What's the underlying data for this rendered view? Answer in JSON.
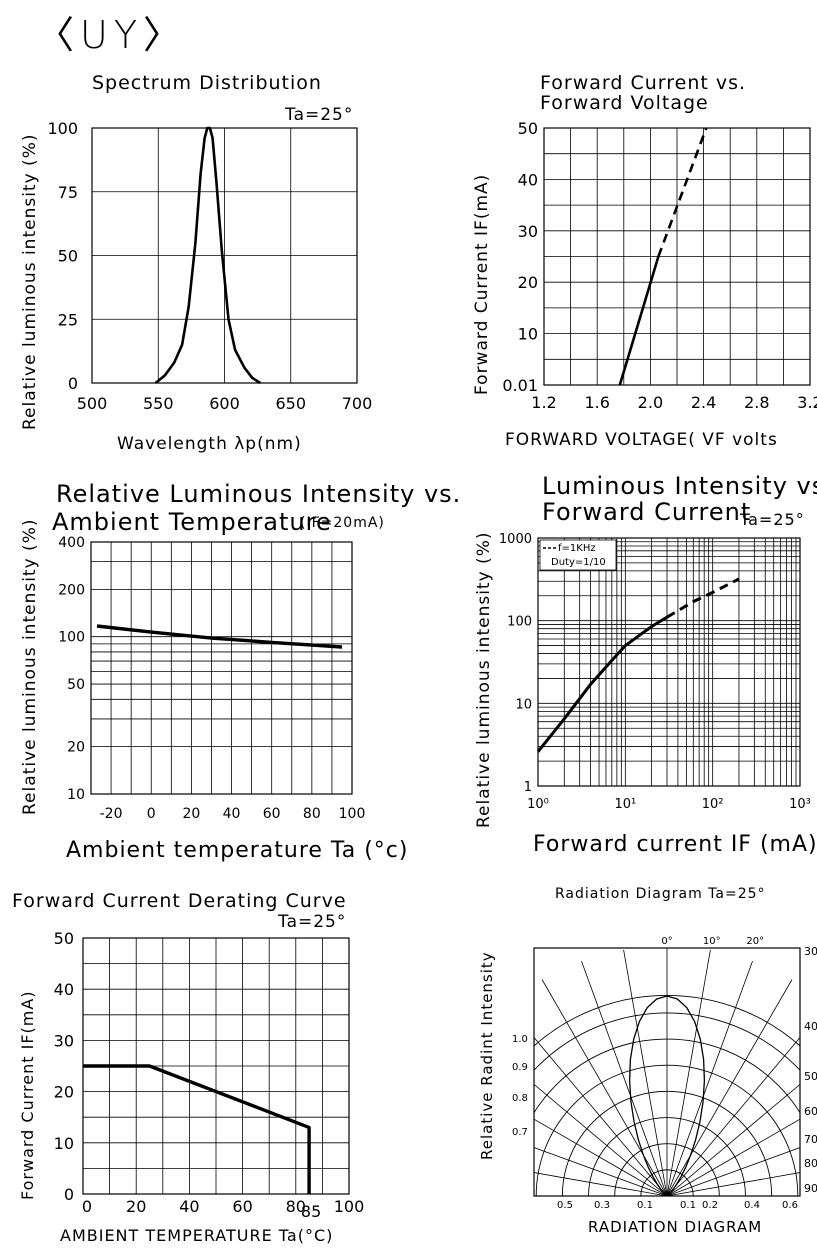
{
  "header": {
    "part_code": "〈UY〉"
  },
  "chart_data": [
    {
      "id": "spectrum",
      "type": "line",
      "title": "Spectrum Distribution",
      "condition": "Ta=25°",
      "xlabel": "Wavelength λp(nm)",
      "ylabel": "Relative luminous intensity (%)",
      "xlim": [
        500,
        700
      ],
      "ylim": [
        0,
        100
      ],
      "x_ticks": [
        "500",
        "550",
        "600",
        "650",
        "700"
      ],
      "y_ticks": [
        "0",
        "25",
        "50",
        "75",
        "100"
      ],
      "grid": true,
      "series": [
        {
          "x": [
            548,
            555,
            562,
            568,
            573,
            578,
            582,
            585,
            587,
            589,
            591,
            594,
            598,
            603,
            608,
            615,
            621,
            627
          ],
          "y": [
            0,
            3,
            8,
            15,
            30,
            55,
            82,
            96,
            100,
            100,
            96,
            78,
            52,
            25,
            13,
            6,
            2,
            0
          ]
        }
      ]
    },
    {
      "id": "iv",
      "type": "line",
      "title": "Forward Current vs.",
      "title2": "Forward Voltage",
      "xlabel": "FORWARD VOLTAGE( VF volts",
      "ylabel": "Forward Current IF(mA)",
      "xlim": [
        1.2,
        3.2
      ],
      "ylim": [
        0,
        50
      ],
      "x_ticks": [
        "1.2",
        "1.6",
        "2.0",
        "2.4",
        "2.8",
        "3.2"
      ],
      "y_ticks": [
        "0.01",
        "10",
        "20",
        "30",
        "40",
        "50"
      ],
      "grid": true,
      "series": [
        {
          "style": "solid",
          "x": [
            1.77,
            2.06
          ],
          "y": [
            0,
            25
          ]
        },
        {
          "style": "dashed",
          "x": [
            2.06,
            2.42
          ],
          "y": [
            25,
            50
          ]
        }
      ]
    },
    {
      "id": "temp",
      "type": "line",
      "title": "Relative Luminous Intensity vs.",
      "title2": "Ambient Temperature",
      "condition": "(IF=20mA)",
      "xlabel": "Ambient temperature Ta (°c)",
      "ylabel": "Relative luminous intensity (%)",
      "xlim": [
        -30,
        100
      ],
      "ylim": [
        10,
        400
      ],
      "yscale": "log",
      "x_ticks": [
        "-20",
        "0",
        "20",
        "40",
        "60",
        "80",
        "100"
      ],
      "y_ticks": [
        "10",
        "20",
        "50",
        "100",
        "200",
        "400"
      ],
      "grid": true,
      "series": [
        {
          "x": [
            -27,
            0,
            30,
            60,
            95
          ],
          "y": [
            117,
            107,
            98,
            92,
            86
          ]
        }
      ]
    },
    {
      "id": "li",
      "type": "line",
      "title": "Luminous Intensity vs",
      "title2": "Forward Current",
      "condition": "Ta=25°",
      "xlabel": "Forward current IF (mA)",
      "ylabel": "Relative luminous intensity (%)",
      "xscale": "log",
      "yscale": "log",
      "xlim": [
        1,
        1000
      ],
      "ylim": [
        1,
        1000
      ],
      "x_ticks": [
        "10⁰",
        "10¹",
        "10²",
        "10³"
      ],
      "y_ticks": [
        "1",
        "10",
        "100",
        "1000"
      ],
      "grid": true,
      "legend": [
        "f=1KHz",
        "Duty=1/10"
      ],
      "legend_position": "top-left",
      "series": [
        {
          "style": "solid",
          "x": [
            1,
            2,
            4,
            7,
            10,
            20,
            30
          ],
          "y": [
            2.6,
            6.5,
            17,
            33,
            50,
            85,
            110
          ]
        },
        {
          "style": "dashed",
          "x": [
            30,
            60,
            100,
            200
          ],
          "y": [
            110,
            170,
            220,
            320
          ]
        }
      ]
    },
    {
      "id": "derating",
      "type": "line",
      "title": "Forward Current Derating Curve",
      "condition": "Ta=25°",
      "xlabel": "AMBIENT TEMPERATURE Ta(°C)",
      "ylabel": "Forward Current IF(mA)",
      "xlim": [
        0,
        100
      ],
      "ylim": [
        0,
        50
      ],
      "x_ticks": [
        "0",
        "20",
        "40",
        "60",
        "80",
        "100"
      ],
      "extra_x_tick": "85",
      "y_ticks": [
        "0",
        "10",
        "20",
        "30",
        "40",
        "50"
      ],
      "grid": true,
      "series": [
        {
          "x": [
            0,
            25,
            85,
            85
          ],
          "y": [
            25,
            25,
            13,
            0
          ]
        }
      ]
    },
    {
      "id": "radiation",
      "type": "polar",
      "title": "Radiation Diagram Ta=25°",
      "xlabel": "RADIATION DIAGRAM",
      "ylabel": "Relative Radint Intensity",
      "angle_labels": [
        "0°",
        "10°",
        "20°",
        "30°",
        "40",
        "50",
        "60",
        "70",
        "80",
        "90"
      ],
      "radial_labels": [
        "1.0",
        "0.9",
        "0.8",
        "0.7"
      ],
      "bottom_labels": [
        "0.5",
        "0.3",
        "0.1",
        "0.1",
        "0.2",
        "0.4",
        "0.6"
      ]
    }
  ]
}
